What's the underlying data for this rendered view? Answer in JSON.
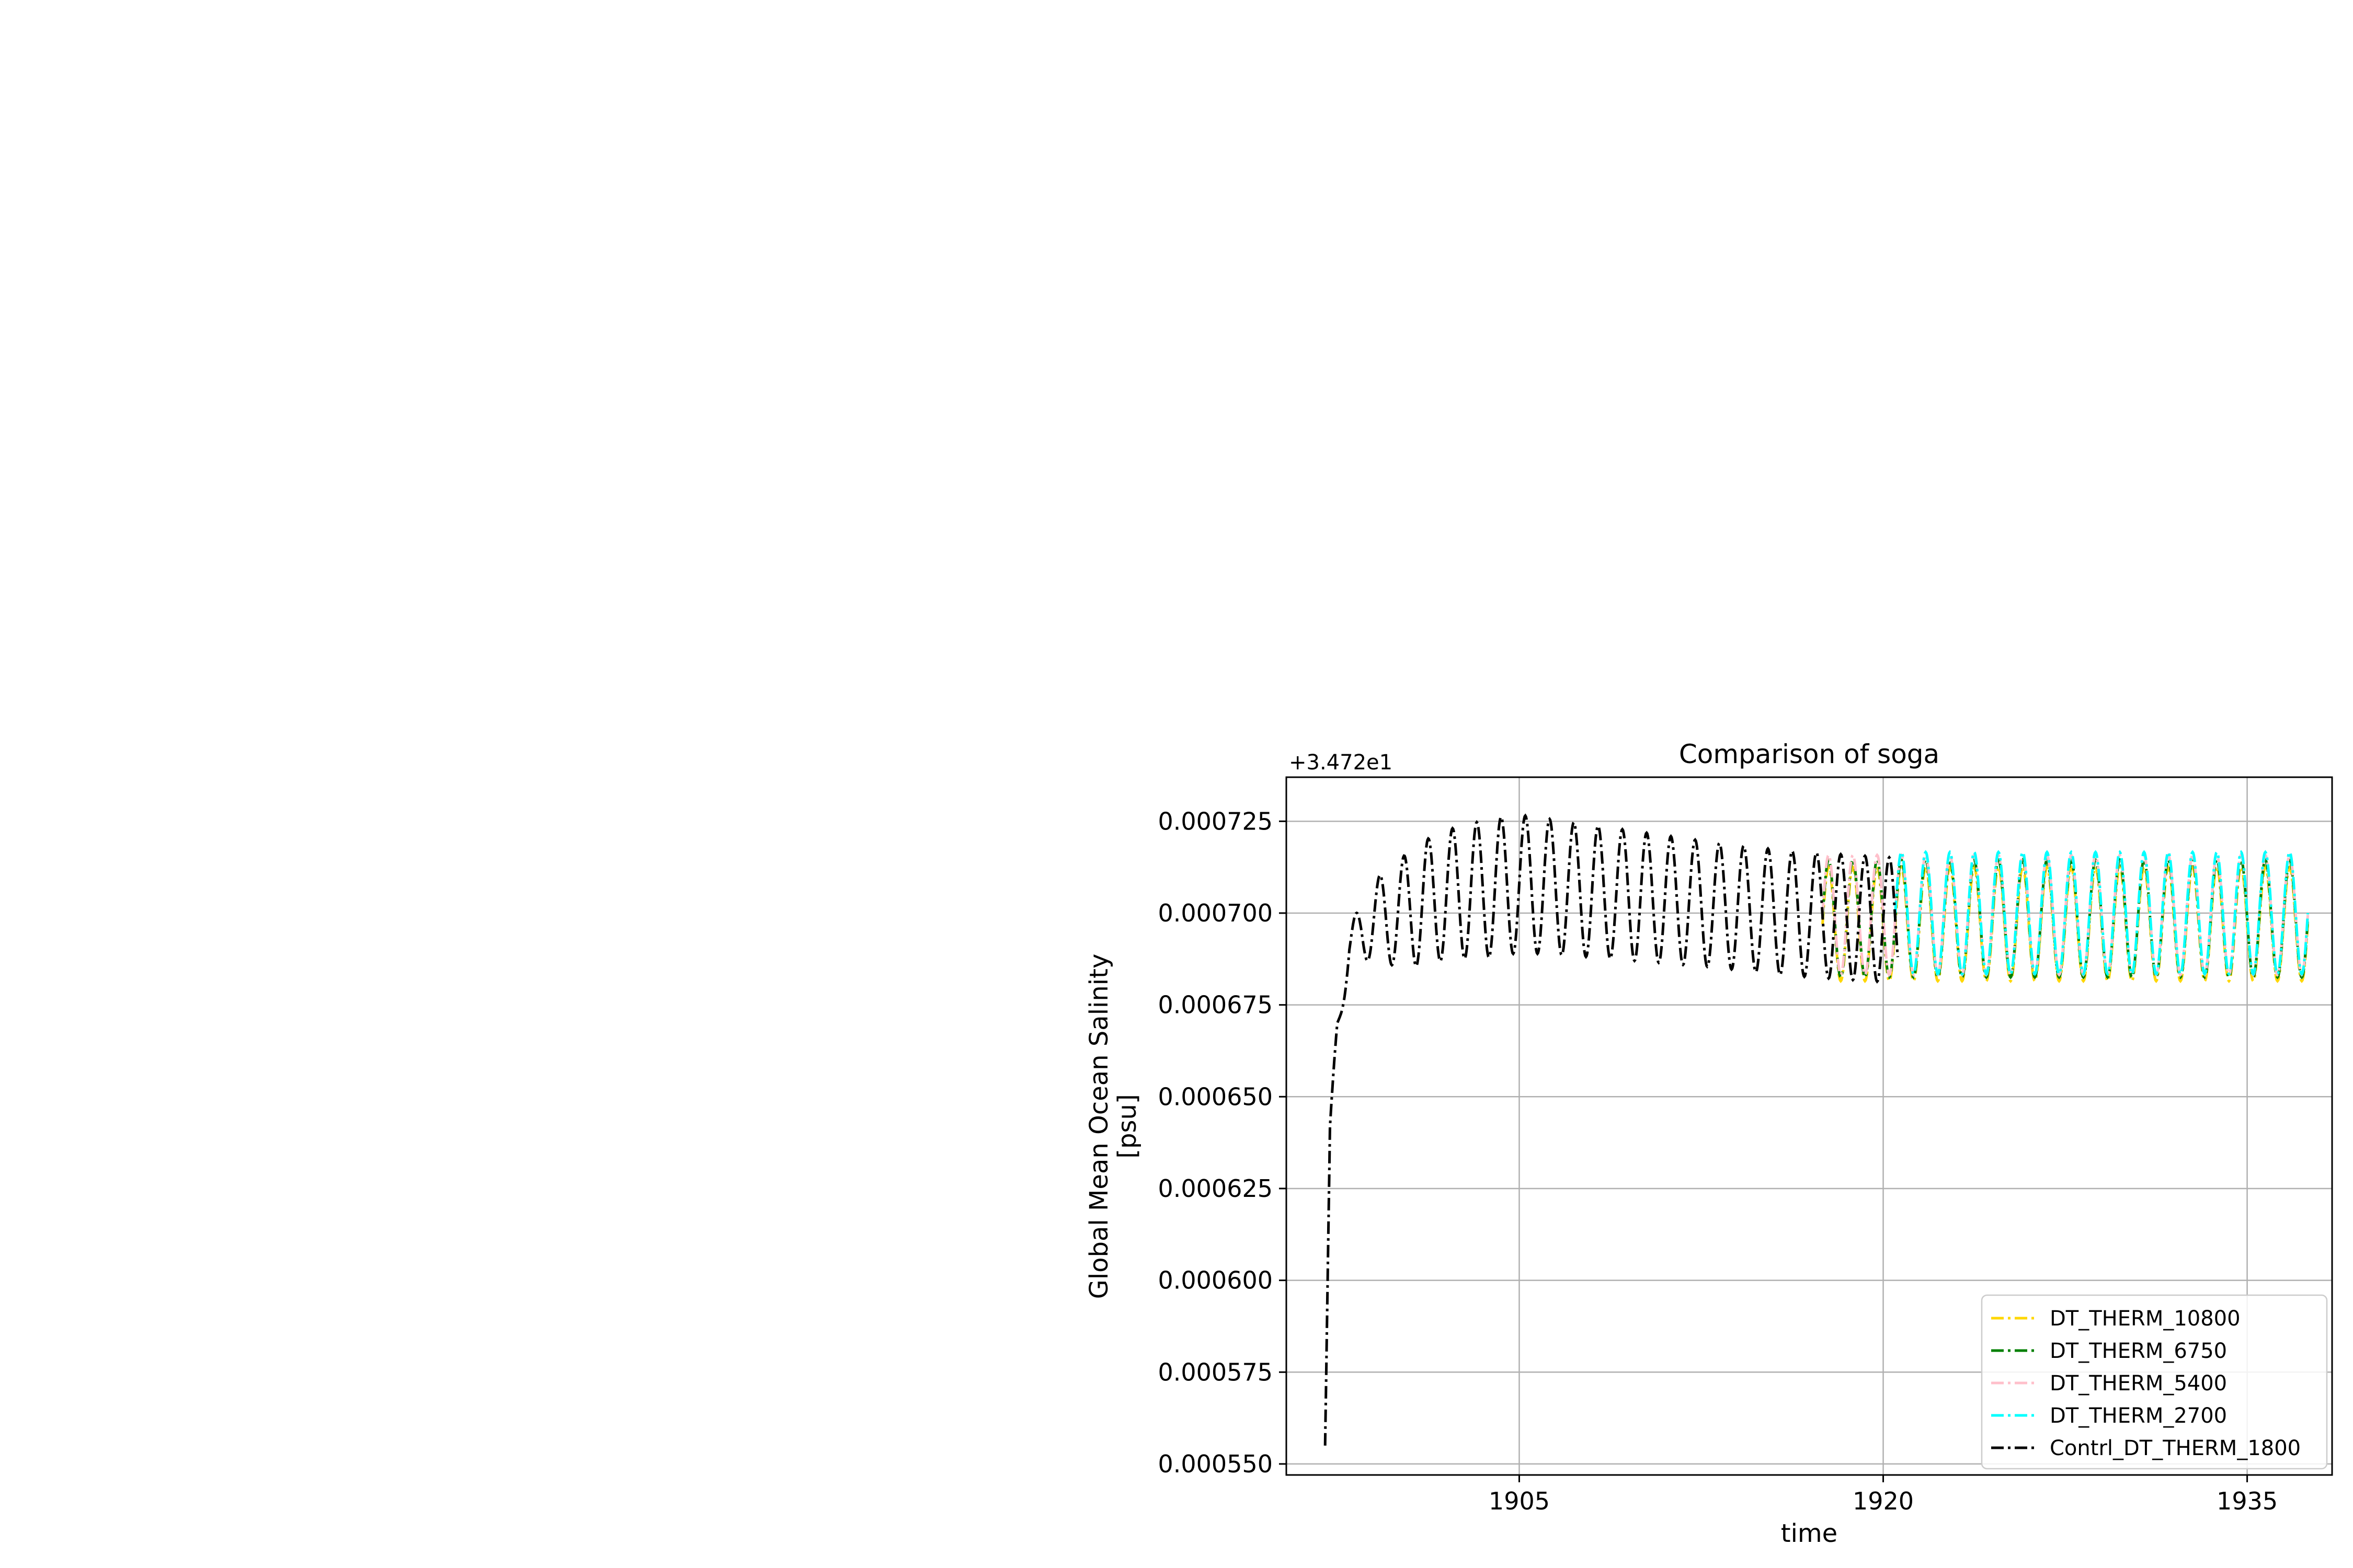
{
  "chart_data": {
    "type": "line",
    "title": "Comparison of soga",
    "xlabel": "time",
    "ylabel_lines": [
      "Global Mean Ocean Salinity",
      "[psu]"
    ],
    "y_offset_label": "+3.472e1",
    "xlim": [
      1895.4,
      1938.5
    ],
    "ylim": [
      0.000547,
      0.000737
    ],
    "x_ticks": [
      1905,
      1920,
      1935
    ],
    "x_tick_labels": [
      "1905",
      "1920",
      "1935"
    ],
    "y_ticks": [
      0.00055,
      0.000575,
      0.0006,
      0.000625,
      0.00065,
      0.000675,
      0.0007,
      0.000725
    ],
    "y_tick_labels": [
      "0.000550",
      "0.000575",
      "0.000600",
      "0.000625",
      "0.000650",
      "0.000675",
      "0.000700",
      "0.000725"
    ],
    "grid": true,
    "legend_position": "lower-right",
    "series": [
      {
        "name": "DT_THERM_10800",
        "color": "#FFD700",
        "x_start": 1917.5,
        "x_end": 1937.5,
        "mean": 0.000697,
        "amplitude": 1.55e-05,
        "period": 1
      },
      {
        "name": "DT_THERM_6750",
        "color": "#008000",
        "x_start": 1917.5,
        "x_end": 1937.5,
        "mean": 0.0006985,
        "amplitude": 1.6e-05,
        "period": 1
      },
      {
        "name": "DT_THERM_5400",
        "color": "#FFC0CB",
        "x_start": 1917.5,
        "x_end": 1937.5,
        "mean": 0.0006995,
        "amplitude": 1.63e-05,
        "period": 1
      },
      {
        "name": "DT_THERM_2700",
        "color": "#00FFFF",
        "x_start": 1920.5,
        "x_end": 1937.5,
        "mean": 0.0007,
        "amplitude": 1.66e-05,
        "period": 1
      },
      {
        "name": "Contrl_DT_THERM_1800",
        "color": "#000000",
        "x_start": 1897.0,
        "x_end": 1920.6,
        "points": [
          [
            1897.0,
            0.000555
          ],
          [
            1897.2,
            0.00064
          ],
          [
            1897.5,
            0.00067
          ],
          [
            1898.0,
            0.00069
          ],
          [
            1898.5,
            0.000695
          ],
          [
            1899.0,
            0.000698
          ],
          [
            1900.0,
            0.0007
          ],
          [
            1902.0,
            0.000705
          ],
          [
            1905.0,
            0.000708
          ],
          [
            1908.0,
            0.000706
          ],
          [
            1912.0,
            0.000703
          ],
          [
            1916.0,
            0.0007
          ],
          [
            1920.6,
            0.000698
          ]
        ],
        "amplitude_points": [
          [
            1897.0,
            1e-06
          ],
          [
            1898.0,
            6e-06
          ],
          [
            1899.5,
            1.3e-05
          ],
          [
            1901.0,
            1.7e-05
          ],
          [
            1904.0,
            1.9e-05
          ],
          [
            1908.0,
            1.8e-05
          ],
          [
            1913.0,
            1.7e-05
          ],
          [
            1920.6,
            1.7e-05
          ]
        ],
        "period": 1
      }
    ]
  }
}
